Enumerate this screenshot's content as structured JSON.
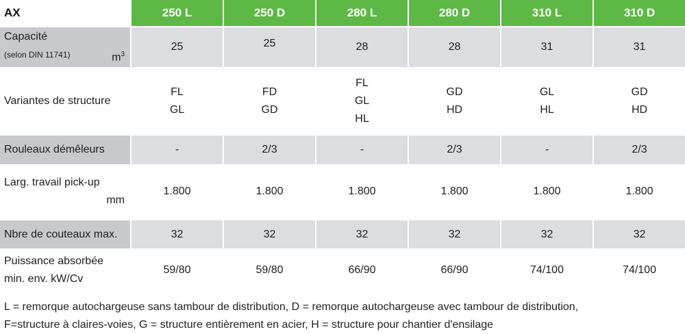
{
  "table": {
    "corner": "AX",
    "columns": [
      "250 L",
      "250 D",
      "280 L",
      "280 D",
      "310 L",
      "310 D"
    ],
    "rows": [
      {
        "label": "Capacité",
        "sublabel": "(selon DIN 11741)",
        "unit": "m",
        "unit_sup": "3",
        "values": [
          "25",
          "25",
          "28",
          "28",
          "31",
          "31"
        ]
      },
      {
        "label": "Variantes de structure",
        "values": [
          [
            "FL",
            "GL"
          ],
          [
            "FD",
            "GD"
          ],
          [
            "FL",
            "GL",
            "HL"
          ],
          [
            "GD",
            "HD"
          ],
          [
            "GL",
            "HL"
          ],
          [
            "GD",
            "HD"
          ]
        ]
      },
      {
        "label": "Rouleaux démêleurs",
        "values": [
          "-",
          "2/3",
          "-",
          "2/3",
          "-",
          "2/3"
        ]
      },
      {
        "label": "Larg. travail pick-up",
        "unit": "mm",
        "values": [
          "1.800",
          "1.800",
          "1.800",
          "1.800",
          "1.800",
          "1.800"
        ]
      },
      {
        "label": "Nbre de couteaux max.",
        "values": [
          "32",
          "32",
          "32",
          "32",
          "32",
          "32"
        ]
      },
      {
        "label": "Puissance absorbée",
        "label2": "min. env. kW/Cv",
        "values": [
          "59/80",
          "59/80",
          "66/90",
          "66/90",
          "74/100",
          "74/100"
        ]
      }
    ]
  },
  "legend": {
    "line1": "L = remorque autochargeuse sans tambour de distribution, D = remorque autochargeuse avec tambour de distribution,",
    "line2": "F=structure à claires-voies, G = structure entièrement en acier, H = structure pour chantier d'ensilage"
  },
  "colors": {
    "header_green": "#5db846",
    "label_grey": "#c8c9cc",
    "cell_grey": "#dcdde0"
  }
}
